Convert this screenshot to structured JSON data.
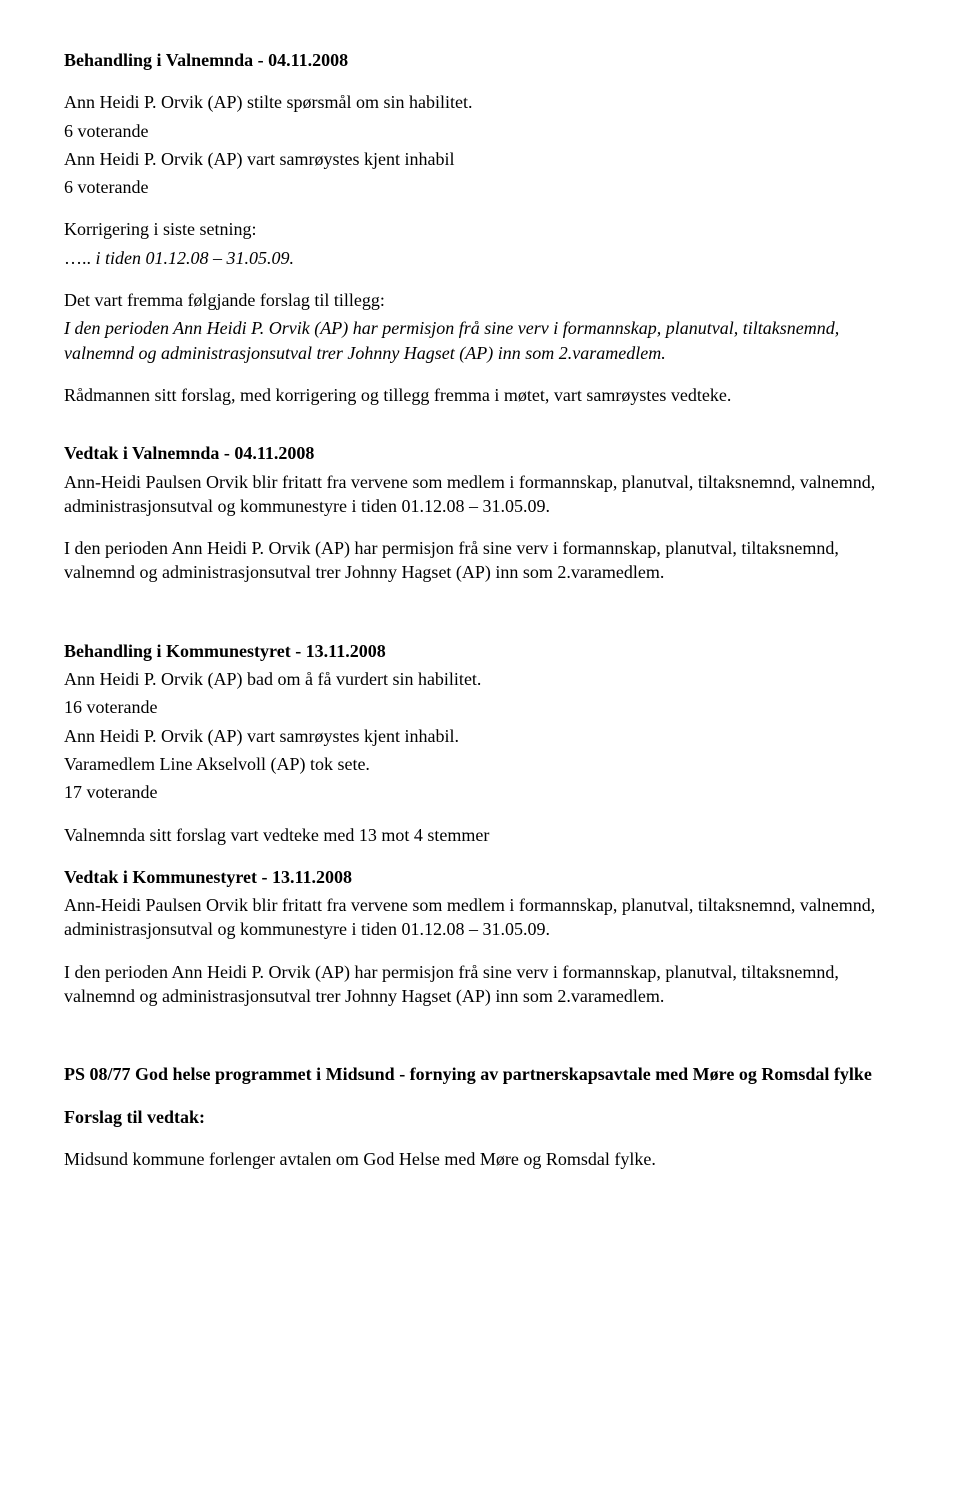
{
  "doc": {
    "h1": "Behandling i Valnemnda - 04.11.2008",
    "p1": "Ann Heidi P. Orvik (AP) stilte spørsmål om sin habilitet.",
    "p2": "6 voterande",
    "p3": "Ann Heidi P. Orvik (AP) vart samrøystes kjent inhabil",
    "p4": "6 voterande",
    "p5": "Korrigering i siste setning:",
    "p6_prefix": "….. ",
    "p6_italic": "i tiden 01.12.08 – 31.05.09.",
    "p7": "Det vart fremma følgjande forslag til tillegg:",
    "p8": "I den perioden Ann Heidi P. Orvik  (AP) har permisjon frå sine verv i formannskap, planutval, tiltaksnemnd, valnemnd og administrasjonsutval trer Johnny Hagset (AP) inn som 2.varamedlem.",
    "p9": "Rådmannen sitt forslag,  med korrigering og tillegg fremma i møtet, vart samrøystes vedteke.",
    "h2": "Vedtak i Valnemnda - 04.11.2008",
    "p10": "Ann-Heidi Paulsen Orvik blir fritatt fra vervene som medlem i formannskap, planutval, tiltaksnemnd, valnemnd, administrasjonsutval og kommunestyre i tiden 01.12.08 – 31.05.09.",
    "p11": "I den perioden Ann Heidi P. Orvik  (AP) har permisjon frå sine verv i formannskap, planutval, tiltaksnemnd, valnemnd og administrasjonsutval trer Johnny Hagset (AP) inn som 2.varamedlem.",
    "h3": "Behandling i Kommunestyret - 13.11.2008",
    "p12": "Ann Heidi P. Orvik (AP) bad om å få vurdert sin habilitet.",
    "p13": "16 voterande",
    "p14": "Ann Heidi P. Orvik (AP) vart samrøystes kjent inhabil.",
    "p15": "Varamedlem Line Akselvoll (AP) tok sete.",
    "p16": "17 voterande",
    "p17": "Valnemnda sitt forslag vart vedteke med 13 mot 4 stemmer",
    "h4": "Vedtak i Kommunestyret - 13.11.2008",
    "p18": "Ann-Heidi Paulsen Orvik blir fritatt fra vervene som medlem i formannskap, planutval, tiltaksnemnd, valnemnd, administrasjonsutval og kommunestyre i tiden 01.12.08 – 31.05.09.",
    "p19": "I den perioden Ann Heidi P. Orvik  (AP) har permisjon frå sine verv i formannskap, planutval, tiltaksnemnd, valnemnd og administrasjonsutval trer Johnny Hagset (AP) inn som 2.varamedlem.",
    "h5": "PS 08/77 God helse programmet i Midsund - fornying av partnerskapsavtale med Møre og Romsdal fylke",
    "h6": "Forslag til vedtak:",
    "p20": "Midsund kommune forlenger avtalen om God Helse med Møre og Romsdal fylke."
  }
}
